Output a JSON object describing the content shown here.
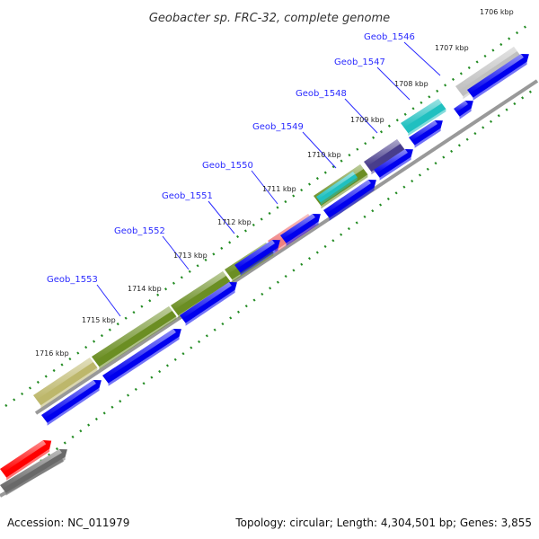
{
  "header": {
    "title": "Geobacter sp. FRC-32, complete genome"
  },
  "footer": {
    "accession": "Accession: NC_011979",
    "topology": "Topology: circular; Length: 4,304,501 bp; Genes: 3,855"
  },
  "kbp_labels": [
    "1706 kbp",
    "1707 kbp",
    "1708 kbp",
    "1709 kbp",
    "1710 kbp",
    "1711 kbp",
    "1712 kbp",
    "1713 kbp",
    "1714 kbp",
    "1715 kbp",
    "1716 kbp"
  ],
  "gene_labels": [
    "Geob_1546",
    "Geob_1547",
    "Geob_1548",
    "Geob_1549",
    "Geob_1550",
    "Geob_1551",
    "Geob_1552",
    "Geob_1553"
  ],
  "colors": {
    "blue_cds": "#0000ee",
    "olive_cds": "#6b8e23",
    "khaki_cds": "#bdb76b",
    "salmon_cds": "#f08080",
    "cyan_cds": "#20c0c0",
    "purple_cds": "#483d8b",
    "gray_cds": "#c0c0c0",
    "red_cds": "#ff0000",
    "dark_gray_cds": "#696969",
    "backbone": "#999999",
    "tick_green": "#228b22",
    "label_blue": "#2a2aff"
  }
}
